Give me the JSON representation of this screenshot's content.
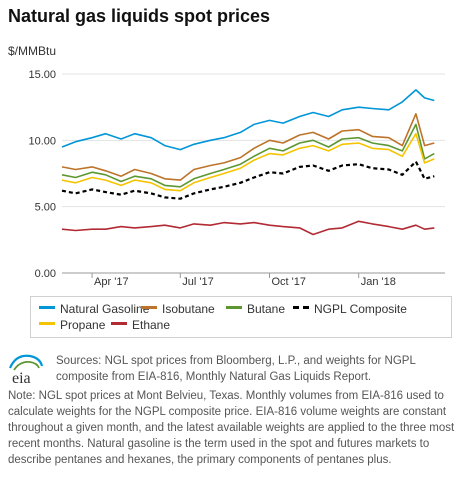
{
  "title": "Natural gas liquids spot prices",
  "unit_label": "$/MMBtu",
  "sources": "Sources: NGL spot prices from Bloomberg, L.P., and weights for NGPL composite from EIA-816, Monthly Natural Gas Liquids Report.",
  "note": "Note: NGL spot prices at Mont Belvieu, Texas. Monthly volumes from EIA-816 used to calculate weights for the NGPL composite price. EIA-816 volume weights are constant throughout a given month, and the latest available weights are applied to the three most recent months. Natural gasoline is the term used in the spot and futures markets to describe pentanes and hexanes, the primary components of pentanes plus.",
  "logo_text": "eia",
  "chart_data": {
    "type": "line",
    "title": "Natural gas liquids spot prices",
    "ylabel": "$/MMBtu",
    "ylim": [
      0,
      15
    ],
    "yticks": [
      0,
      5,
      10,
      15
    ],
    "ytick_labels": [
      "0.00",
      "5.00",
      "10.00",
      "15.00"
    ],
    "xlim": [
      "2017-03-01",
      "2018-03-31"
    ],
    "xticks": [
      "2017-04-01",
      "2017-07-01",
      "2017-10-01",
      "2018-01-01"
    ],
    "xtick_labels": [
      "Apr '17",
      "Jul '17",
      "Oct '17",
      "Jan '18"
    ],
    "grid": "horizontal",
    "legend_position": "bottom",
    "series": [
      {
        "name": "Natural Gasoline",
        "color": "#0096d7",
        "dash": "",
        "points": [
          [
            "2017-03-01",
            9.5
          ],
          [
            "2017-03-15",
            9.9
          ],
          [
            "2017-04-01",
            10.2
          ],
          [
            "2017-04-15",
            10.5
          ],
          [
            "2017-05-01",
            10.1
          ],
          [
            "2017-05-15",
            10.5
          ],
          [
            "2017-06-01",
            10.2
          ],
          [
            "2017-06-15",
            9.6
          ],
          [
            "2017-07-01",
            9.3
          ],
          [
            "2017-07-15",
            9.7
          ],
          [
            "2017-08-01",
            10.0
          ],
          [
            "2017-08-15",
            10.2
          ],
          [
            "2017-09-01",
            10.6
          ],
          [
            "2017-09-15",
            11.2
          ],
          [
            "2017-10-01",
            11.5
          ],
          [
            "2017-10-15",
            11.3
          ],
          [
            "2017-11-01",
            11.8
          ],
          [
            "2017-11-15",
            12.1
          ],
          [
            "2017-12-01",
            11.8
          ],
          [
            "2017-12-15",
            12.3
          ],
          [
            "2018-01-01",
            12.5
          ],
          [
            "2018-01-15",
            12.4
          ],
          [
            "2018-02-01",
            12.3
          ],
          [
            "2018-02-15",
            12.9
          ],
          [
            "2018-03-01",
            13.8
          ],
          [
            "2018-03-10",
            13.2
          ],
          [
            "2018-03-20",
            13.0
          ]
        ]
      },
      {
        "name": "Isobutane",
        "color": "#bd732a",
        "dash": "",
        "points": [
          [
            "2017-03-01",
            8.0
          ],
          [
            "2017-03-15",
            7.8
          ],
          [
            "2017-04-01",
            8.0
          ],
          [
            "2017-04-15",
            7.7
          ],
          [
            "2017-05-01",
            7.3
          ],
          [
            "2017-05-15",
            7.8
          ],
          [
            "2017-06-01",
            7.5
          ],
          [
            "2017-06-15",
            7.1
          ],
          [
            "2017-07-01",
            7.0
          ],
          [
            "2017-07-15",
            7.8
          ],
          [
            "2017-08-01",
            8.1
          ],
          [
            "2017-08-15",
            8.3
          ],
          [
            "2017-09-01",
            8.7
          ],
          [
            "2017-09-15",
            9.4
          ],
          [
            "2017-10-01",
            10.0
          ],
          [
            "2017-10-15",
            9.8
          ],
          [
            "2017-11-01",
            10.4
          ],
          [
            "2017-11-15",
            10.6
          ],
          [
            "2017-12-01",
            10.1
          ],
          [
            "2017-12-15",
            10.7
          ],
          [
            "2018-01-01",
            10.8
          ],
          [
            "2018-01-15",
            10.3
          ],
          [
            "2018-02-01",
            10.2
          ],
          [
            "2018-02-15",
            9.6
          ],
          [
            "2018-03-01",
            12.0
          ],
          [
            "2018-03-10",
            9.6
          ],
          [
            "2018-03-20",
            9.8
          ]
        ]
      },
      {
        "name": "Butane",
        "color": "#5d9732",
        "dash": "",
        "points": [
          [
            "2017-03-01",
            7.4
          ],
          [
            "2017-03-15",
            7.2
          ],
          [
            "2017-04-01",
            7.6
          ],
          [
            "2017-04-15",
            7.4
          ],
          [
            "2017-05-01",
            6.9
          ],
          [
            "2017-05-15",
            7.3
          ],
          [
            "2017-06-01",
            7.1
          ],
          [
            "2017-06-15",
            6.6
          ],
          [
            "2017-07-01",
            6.5
          ],
          [
            "2017-07-15",
            7.1
          ],
          [
            "2017-08-01",
            7.5
          ],
          [
            "2017-08-15",
            7.8
          ],
          [
            "2017-09-01",
            8.2
          ],
          [
            "2017-09-15",
            8.8
          ],
          [
            "2017-10-01",
            9.4
          ],
          [
            "2017-10-15",
            9.2
          ],
          [
            "2017-11-01",
            9.8
          ],
          [
            "2017-11-15",
            10.0
          ],
          [
            "2017-12-01",
            9.5
          ],
          [
            "2017-12-15",
            10.1
          ],
          [
            "2018-01-01",
            10.2
          ],
          [
            "2018-01-15",
            9.8
          ],
          [
            "2018-02-01",
            9.6
          ],
          [
            "2018-02-15",
            9.2
          ],
          [
            "2018-03-01",
            11.2
          ],
          [
            "2018-03-10",
            8.6
          ],
          [
            "2018-03-20",
            9.0
          ]
        ]
      },
      {
        "name": "NGPL Composite",
        "color": "#000000",
        "dash": "4,3",
        "points": [
          [
            "2017-03-01",
            6.2
          ],
          [
            "2017-03-15",
            6.0
          ],
          [
            "2017-04-01",
            6.3
          ],
          [
            "2017-04-15",
            6.1
          ],
          [
            "2017-05-01",
            5.9
          ],
          [
            "2017-05-15",
            6.2
          ],
          [
            "2017-06-01",
            6.0
          ],
          [
            "2017-06-15",
            5.7
          ],
          [
            "2017-07-01",
            5.6
          ],
          [
            "2017-07-15",
            6.0
          ],
          [
            "2017-08-01",
            6.3
          ],
          [
            "2017-08-15",
            6.5
          ],
          [
            "2017-09-01",
            6.8
          ],
          [
            "2017-09-15",
            7.2
          ],
          [
            "2017-10-01",
            7.6
          ],
          [
            "2017-10-15",
            7.5
          ],
          [
            "2017-11-01",
            8.0
          ],
          [
            "2017-11-15",
            8.1
          ],
          [
            "2017-12-01",
            7.7
          ],
          [
            "2017-12-15",
            8.1
          ],
          [
            "2018-01-01",
            8.2
          ],
          [
            "2018-01-15",
            7.9
          ],
          [
            "2018-02-01",
            7.8
          ],
          [
            "2018-02-15",
            7.4
          ],
          [
            "2018-03-01",
            8.4
          ],
          [
            "2018-03-10",
            7.1
          ],
          [
            "2018-03-20",
            7.3
          ]
        ]
      },
      {
        "name": "Propane",
        "color": "#f5c400",
        "dash": "",
        "points": [
          [
            "2017-03-01",
            7.0
          ],
          [
            "2017-03-15",
            6.8
          ],
          [
            "2017-04-01",
            7.2
          ],
          [
            "2017-04-15",
            7.0
          ],
          [
            "2017-05-01",
            6.6
          ],
          [
            "2017-05-15",
            7.0
          ],
          [
            "2017-06-01",
            6.8
          ],
          [
            "2017-06-15",
            6.3
          ],
          [
            "2017-07-01",
            6.2
          ],
          [
            "2017-07-15",
            6.8
          ],
          [
            "2017-08-01",
            7.2
          ],
          [
            "2017-08-15",
            7.5
          ],
          [
            "2017-09-01",
            7.9
          ],
          [
            "2017-09-15",
            8.5
          ],
          [
            "2017-10-01",
            9.0
          ],
          [
            "2017-10-15",
            8.9
          ],
          [
            "2017-11-01",
            9.4
          ],
          [
            "2017-11-15",
            9.6
          ],
          [
            "2017-12-01",
            9.2
          ],
          [
            "2017-12-15",
            9.7
          ],
          [
            "2018-01-01",
            9.8
          ],
          [
            "2018-01-15",
            9.4
          ],
          [
            "2018-02-01",
            9.3
          ],
          [
            "2018-02-15",
            8.8
          ],
          [
            "2018-03-01",
            10.5
          ],
          [
            "2018-03-10",
            8.3
          ],
          [
            "2018-03-20",
            8.6
          ]
        ]
      },
      {
        "name": "Ethane",
        "color": "#b22b34",
        "dash": "",
        "points": [
          [
            "2017-03-01",
            3.3
          ],
          [
            "2017-03-15",
            3.2
          ],
          [
            "2017-04-01",
            3.3
          ],
          [
            "2017-04-15",
            3.3
          ],
          [
            "2017-05-01",
            3.5
          ],
          [
            "2017-05-15",
            3.4
          ],
          [
            "2017-06-01",
            3.5
          ],
          [
            "2017-06-15",
            3.6
          ],
          [
            "2017-07-01",
            3.4
          ],
          [
            "2017-07-15",
            3.7
          ],
          [
            "2017-08-01",
            3.6
          ],
          [
            "2017-08-15",
            3.8
          ],
          [
            "2017-09-01",
            3.7
          ],
          [
            "2017-09-15",
            3.8
          ],
          [
            "2017-10-01",
            3.6
          ],
          [
            "2017-10-15",
            3.5
          ],
          [
            "2017-11-01",
            3.4
          ],
          [
            "2017-11-15",
            2.9
          ],
          [
            "2017-12-01",
            3.3
          ],
          [
            "2017-12-15",
            3.4
          ],
          [
            "2018-01-01",
            3.9
          ],
          [
            "2018-01-15",
            3.7
          ],
          [
            "2018-02-01",
            3.5
          ],
          [
            "2018-02-15",
            3.3
          ],
          [
            "2018-03-01",
            3.6
          ],
          [
            "2018-03-10",
            3.3
          ],
          [
            "2018-03-20",
            3.4
          ]
        ]
      }
    ]
  }
}
